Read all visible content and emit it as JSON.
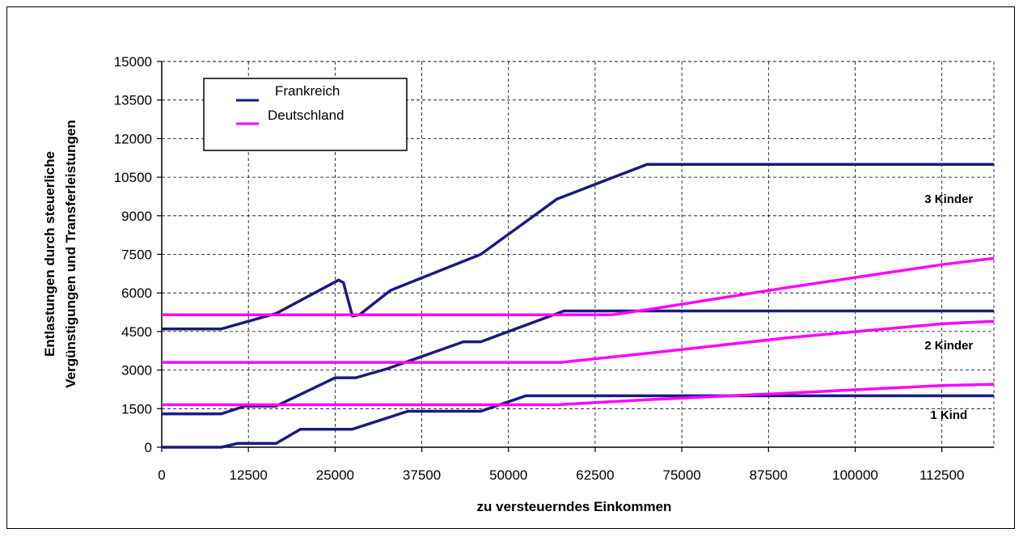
{
  "chart_data": {
    "type": "line",
    "title": "",
    "xlabel": "zu versteuerndes Einkommen",
    "ylabel_lines": [
      "Entlastungen durch steuerliche",
      "Vergünstigungen und Transferleistungen"
    ],
    "xlim": [
      0,
      120000
    ],
    "ylim": [
      0,
      15000
    ],
    "x_ticks": [
      0,
      12500,
      25000,
      37500,
      50000,
      62500,
      75000,
      87500,
      100000,
      112500
    ],
    "x_tick_labels": [
      "0",
      "12500",
      "25000",
      "37500",
      "50000",
      "62500",
      "75000",
      "87500",
      "100000",
      "112500"
    ],
    "y_ticks": [
      0,
      1500,
      3000,
      4500,
      6000,
      7500,
      9000,
      10500,
      12000,
      13500,
      15000
    ],
    "y_tick_labels": [
      "0",
      "1500",
      "3000",
      "4500",
      "6000",
      "7500",
      "9000",
      "10500",
      "12000",
      "13500",
      "15000"
    ],
    "grid": true,
    "legend_position": "top-left",
    "legend": [
      {
        "name": "Frankreich",
        "color": "#1a1a80"
      },
      {
        "name": "Deutschland",
        "color": "#ff00ff"
      }
    ],
    "annotations": [
      {
        "text": "3 Kinder",
        "x": 113500,
        "y": 9500
      },
      {
        "text": "2 Kinder",
        "x": 113500,
        "y": 3800
      },
      {
        "text": "1 Kind",
        "x": 113500,
        "y": 1100
      }
    ],
    "series": [
      {
        "name": "Frankreich",
        "group": "1 Kind",
        "color": "#1a1a80",
        "points": [
          [
            0,
            0
          ],
          [
            8600,
            0
          ],
          [
            11000,
            150
          ],
          [
            16500,
            150
          ],
          [
            20000,
            700
          ],
          [
            27500,
            700
          ],
          [
            35500,
            1400
          ],
          [
            46000,
            1400
          ],
          [
            52500,
            2000
          ],
          [
            120000,
            2000
          ]
        ]
      },
      {
        "name": "Frankreich",
        "group": "2 Kinder",
        "color": "#1a1a80",
        "points": [
          [
            0,
            1300
          ],
          [
            8600,
            1300
          ],
          [
            12000,
            1600
          ],
          [
            16500,
            1600
          ],
          [
            25000,
            2700
          ],
          [
            28000,
            2700
          ],
          [
            32500,
            3050
          ],
          [
            43500,
            4100
          ],
          [
            46000,
            4100
          ],
          [
            58000,
            5300
          ],
          [
            120000,
            5300
          ]
        ]
      },
      {
        "name": "Frankreich",
        "group": "3 Kinder",
        "color": "#1a1a80",
        "points": [
          [
            0,
            4600
          ],
          [
            8600,
            4600
          ],
          [
            16500,
            5200
          ],
          [
            25500,
            6500
          ],
          [
            26200,
            6400
          ],
          [
            27500,
            5100
          ],
          [
            28500,
            5150
          ],
          [
            33000,
            6100
          ],
          [
            46000,
            7500
          ],
          [
            57000,
            9650
          ],
          [
            70000,
            11000
          ],
          [
            120000,
            11000
          ]
        ]
      },
      {
        "name": "Deutschland",
        "group": "1 Kind",
        "color": "#ff00ff",
        "points": [
          [
            0,
            1650
          ],
          [
            57000,
            1650
          ],
          [
            70000,
            1850
          ],
          [
            90000,
            2100
          ],
          [
            112500,
            2400
          ],
          [
            120000,
            2450
          ]
        ]
      },
      {
        "name": "Deutschland",
        "group": "2 Kinder",
        "color": "#ff00ff",
        "points": [
          [
            0,
            3300
          ],
          [
            57500,
            3300
          ],
          [
            70000,
            3650
          ],
          [
            90000,
            4250
          ],
          [
            112500,
            4800
          ],
          [
            120000,
            4900
          ]
        ]
      },
      {
        "name": "Deutschland",
        "group": "3 Kinder",
        "color": "#ff00ff",
        "points": [
          [
            0,
            5150
          ],
          [
            65000,
            5150
          ],
          [
            70000,
            5350
          ],
          [
            90000,
            6200
          ],
          [
            112500,
            7100
          ],
          [
            120000,
            7350
          ]
        ]
      }
    ]
  }
}
